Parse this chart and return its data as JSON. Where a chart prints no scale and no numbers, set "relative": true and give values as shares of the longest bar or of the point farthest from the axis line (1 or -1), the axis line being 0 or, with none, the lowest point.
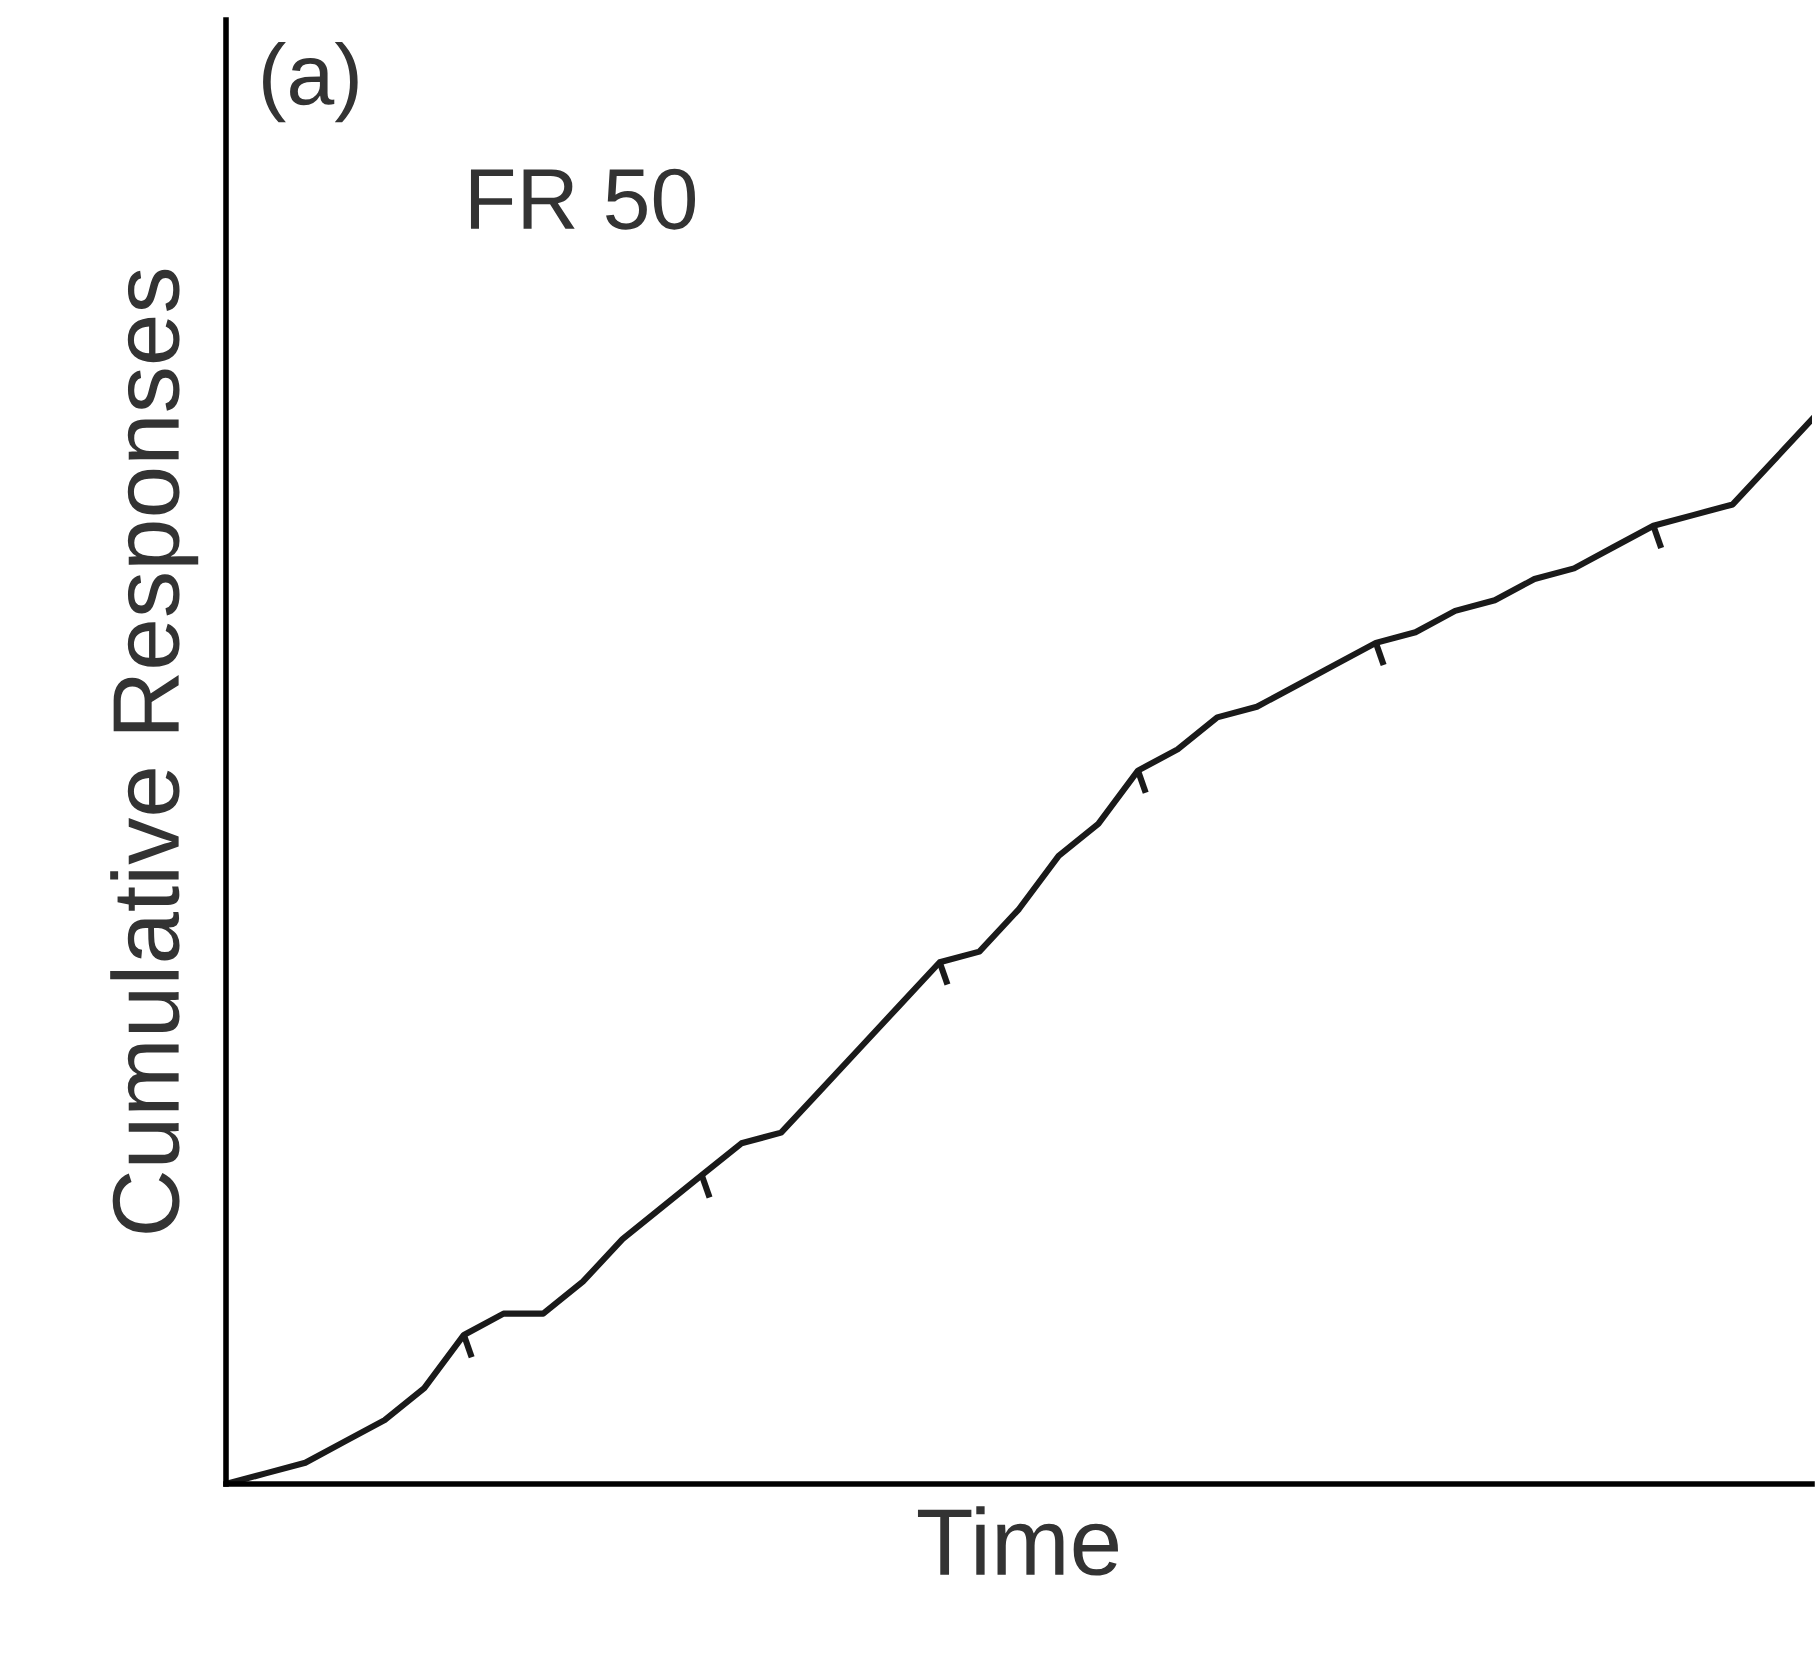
{
  "chart_data": {
    "type": "line",
    "relative": true,
    "xlabel": "Time",
    "ylabel": "Cumulative Responses",
    "annotations": [
      "(a)",
      "FR 50"
    ],
    "categories": [
      null,
      null,
      null,
      null,
      null,
      null,
      null,
      null,
      null,
      null,
      null,
      null,
      null,
      null,
      null,
      null,
      null,
      null,
      null,
      null,
      null,
      null,
      null,
      null,
      null,
      null,
      null,
      null,
      null,
      null,
      null,
      null,
      null,
      null,
      null,
      null,
      null,
      null,
      null,
      null,
      null
    ],
    "series": [
      {
        "color": "#1a1a1a",
        "values": [
          0,
          0.01,
          0.02,
          0.04,
          0.06,
          0.09,
          0.14,
          0.16,
          0.16,
          0.19,
          0.23,
          0.26,
          0.29,
          0.32,
          0.33,
          0.37,
          0.41,
          0.45,
          0.49,
          0.5,
          0.54,
          0.59,
          0.62,
          0.67,
          0.69,
          0.72,
          0.73,
          0.75,
          0.77,
          0.79,
          0.8,
          0.82,
          0.83,
          0.85,
          0.86,
          0.88,
          0.9,
          0.91,
          0.92,
          0.96,
          1
        ]
      }
    ]
  }
}
